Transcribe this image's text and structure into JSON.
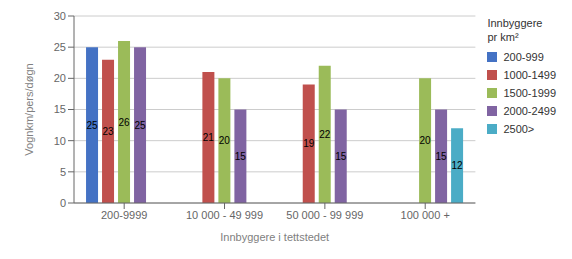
{
  "chart_data": {
    "type": "bar",
    "categories": [
      "200-9999",
      "10 000 - 49 999",
      "50 000 - 99 999",
      "100 000 +"
    ],
    "series": [
      {
        "name": "200-999",
        "color": "#4472C4",
        "values": [
          25,
          null,
          null,
          null
        ]
      },
      {
        "name": "1000-1499",
        "color": "#C0504D",
        "values": [
          23,
          21,
          19,
          null
        ]
      },
      {
        "name": "1500-1999",
        "color": "#9BBB59",
        "values": [
          26,
          20,
          22,
          20
        ]
      },
      {
        "name": "2000-2499",
        "color": "#8064A2",
        "values": [
          25,
          15,
          15,
          15
        ]
      },
      {
        "name": "2500>",
        "color": "#4BACC6",
        "values": [
          null,
          null,
          null,
          12
        ]
      }
    ],
    "xlabel": "Innbyggere i tettstedet",
    "ylabel": "Vognkm/pers/døgn",
    "legend_title": "Innbyggere\npr km²",
    "legend": "right",
    "ylim": [
      0,
      30
    ],
    "yticks": [
      0,
      5,
      10,
      15,
      20,
      25,
      30
    ],
    "grid": true,
    "data_labels": true
  }
}
